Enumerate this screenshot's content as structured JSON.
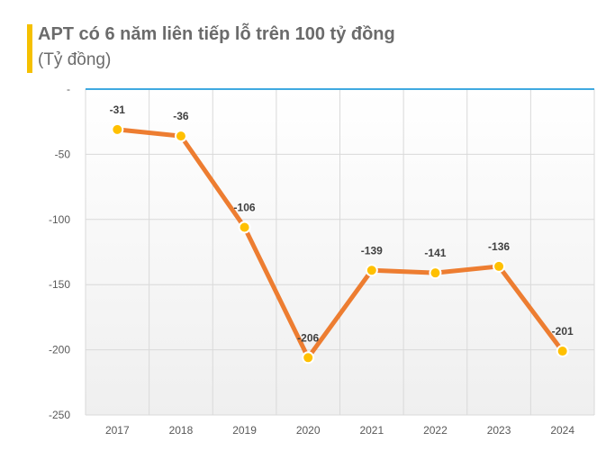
{
  "header": {
    "title": "APT có 6 năm liên tiếp lỗ trên 100 tỷ đồng",
    "subtitle": "(Tỷ đồng)"
  },
  "colors": {
    "title_bar": "#f5c000",
    "line": "#ed7d31",
    "marker": "#ffc000",
    "zero_line": "#3fa9e0",
    "grid": "#d9d9d9"
  },
  "chart_data": {
    "type": "line",
    "title": "APT có 6 năm liên tiếp lỗ trên 100 tỷ đồng",
    "ylabel": "(Tỷ đồng)",
    "categories": [
      "2017",
      "2018",
      "2019",
      "2020",
      "2021",
      "2022",
      "2023",
      "2024"
    ],
    "series": [
      {
        "values": [
          -31,
          -36,
          -106,
          -206,
          -139,
          -141,
          -136,
          -201
        ]
      }
    ],
    "data_labels": [
      "-31",
      "-36",
      "-106",
      "-206",
      "-139",
      "-141",
      "-136",
      "-201"
    ],
    "ylim": [
      -250,
      0
    ],
    "y_ticks": [
      0,
      -50,
      -100,
      -150,
      -200,
      -250
    ],
    "y_tick_labels": [
      "-",
      "-50",
      "-100",
      "-150",
      "-200",
      "-250"
    ],
    "grid": true,
    "legend": "none"
  }
}
